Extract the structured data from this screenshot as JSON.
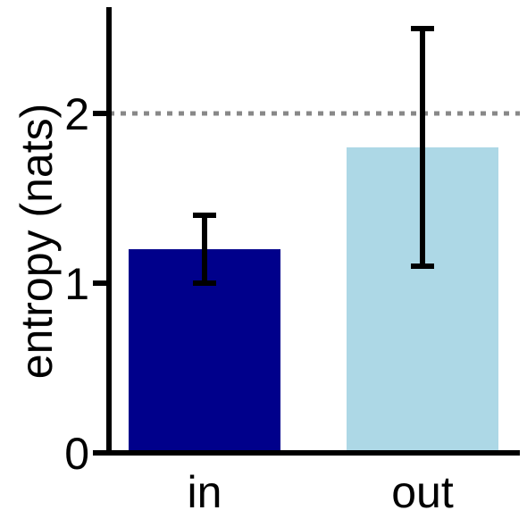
{
  "chart_data": {
    "type": "bar",
    "categories": [
      "in",
      "out"
    ],
    "values": [
      1.2,
      1.8
    ],
    "errors": [
      0.2,
      0.7
    ],
    "colors": [
      "#00008b",
      "#add8e6"
    ],
    "title": "",
    "xlabel": "",
    "ylabel": "entropy (nats)",
    "ylim": [
      0,
      2.6
    ],
    "yticks": [
      0,
      1,
      2
    ],
    "reference_line": {
      "y": 2,
      "style": "dotted",
      "color": "#888888"
    },
    "grid": false,
    "legend": "none"
  }
}
